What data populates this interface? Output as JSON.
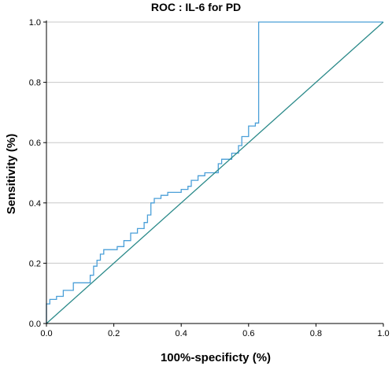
{
  "chart_data": {
    "type": "line",
    "title": "ROC : IL-6 for PD",
    "xlabel": "100%-specificty (%)",
    "ylabel": "Sensitivity (%)",
    "xlim": [
      0,
      1
    ],
    "ylim": [
      0,
      1
    ],
    "x_ticks": [
      "0.0",
      "0.2",
      "0.4",
      "0.6",
      "0.8",
      "1.0"
    ],
    "y_ticks": [
      "0.0",
      "0.2",
      "0.4",
      "0.6",
      "0.8",
      "1.0"
    ],
    "grid": "horizontal",
    "legend": "none",
    "colors": {
      "roc": "#4a9fd8",
      "reference": "#2b8a8a",
      "grid": "#c8c8c8",
      "axis": "#000000"
    },
    "series": [
      {
        "values": [
          [
            0.0,
            0.0
          ],
          [
            0.0,
            0.065
          ],
          [
            0.01,
            0.065
          ],
          [
            0.01,
            0.08
          ],
          [
            0.03,
            0.08
          ],
          [
            0.03,
            0.09
          ],
          [
            0.05,
            0.09
          ],
          [
            0.05,
            0.11
          ],
          [
            0.08,
            0.11
          ],
          [
            0.08,
            0.135
          ],
          [
            0.13,
            0.135
          ],
          [
            0.13,
            0.16
          ],
          [
            0.14,
            0.16
          ],
          [
            0.14,
            0.19
          ],
          [
            0.15,
            0.19
          ],
          [
            0.15,
            0.21
          ],
          [
            0.16,
            0.21
          ],
          [
            0.16,
            0.23
          ],
          [
            0.17,
            0.23
          ],
          [
            0.17,
            0.245
          ],
          [
            0.21,
            0.245
          ],
          [
            0.21,
            0.255
          ],
          [
            0.23,
            0.255
          ],
          [
            0.23,
            0.275
          ],
          [
            0.25,
            0.275
          ],
          [
            0.25,
            0.3
          ],
          [
            0.27,
            0.3
          ],
          [
            0.27,
            0.315
          ],
          [
            0.29,
            0.315
          ],
          [
            0.29,
            0.335
          ],
          [
            0.3,
            0.335
          ],
          [
            0.3,
            0.36
          ],
          [
            0.31,
            0.36
          ],
          [
            0.31,
            0.4
          ],
          [
            0.32,
            0.4
          ],
          [
            0.32,
            0.415
          ],
          [
            0.34,
            0.415
          ],
          [
            0.34,
            0.425
          ],
          [
            0.36,
            0.425
          ],
          [
            0.36,
            0.435
          ],
          [
            0.4,
            0.435
          ],
          [
            0.4,
            0.445
          ],
          [
            0.42,
            0.445
          ],
          [
            0.42,
            0.455
          ],
          [
            0.43,
            0.455
          ],
          [
            0.43,
            0.475
          ],
          [
            0.45,
            0.475
          ],
          [
            0.45,
            0.49
          ],
          [
            0.47,
            0.49
          ],
          [
            0.47,
            0.5
          ],
          [
            0.51,
            0.5
          ],
          [
            0.51,
            0.53
          ],
          [
            0.52,
            0.53
          ],
          [
            0.52,
            0.545
          ],
          [
            0.55,
            0.545
          ],
          [
            0.55,
            0.565
          ],
          [
            0.57,
            0.565
          ],
          [
            0.57,
            0.59
          ],
          [
            0.58,
            0.59
          ],
          [
            0.58,
            0.62
          ],
          [
            0.6,
            0.62
          ],
          [
            0.6,
            0.655
          ],
          [
            0.62,
            0.655
          ],
          [
            0.62,
            0.665
          ],
          [
            0.63,
            0.665
          ],
          [
            0.63,
            1.0
          ],
          [
            1.0,
            1.0
          ]
        ]
      },
      {
        "values": [
          [
            0.0,
            0.0
          ],
          [
            1.0,
            1.0
          ]
        ]
      }
    ]
  }
}
